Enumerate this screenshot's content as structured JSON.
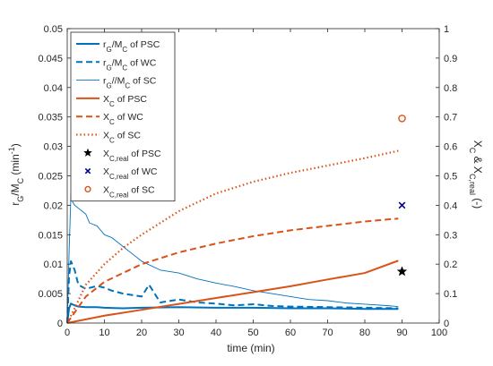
{
  "chart_data": {
    "type": "line",
    "xlabel": "time (min)",
    "ylabel_left": {
      "main": "r",
      "sub1": "G",
      "mid": "/M",
      "sub2": "C",
      "unit": " (min",
      "sup": "-1",
      "close": ")"
    },
    "ylabel_right": {
      "main1": "X",
      "sub1": "C",
      "mid": " & X",
      "sub2": "C,real",
      "unit": " (-)"
    },
    "xlim": [
      0,
      100
    ],
    "ylim_left": [
      0,
      0.05
    ],
    "ylim_right": [
      0,
      1
    ],
    "x_ticks": [
      "0",
      "10",
      "20",
      "30",
      "40",
      "50",
      "60",
      "70",
      "80",
      "90",
      "100"
    ],
    "y_left_ticks": [
      "0",
      "0.005",
      "0.01",
      "0.015",
      "0.02",
      "0.025",
      "0.03",
      "0.035",
      "0.04",
      "0.045",
      "0.05"
    ],
    "y_right_ticks": [
      "0",
      "0.1",
      "0.2",
      "0.3",
      "0.4",
      "0.5",
      "0.6",
      "0.7",
      "0.8",
      "0.9",
      "1"
    ],
    "legend_position": "top-left",
    "colors": {
      "blue": "#0072BD",
      "orange": "#D95319",
      "navy": "#00008B",
      "black": "#000000"
    },
    "series": [
      {
        "legend": {
          "main": "r",
          "sub1": "G",
          "mid": "/M",
          "sub2": "C",
          "tail": " of PSC"
        },
        "axis": "left",
        "style": "solid",
        "color": "#0072BD",
        "x": [
          0,
          0.5,
          1,
          2,
          3,
          5,
          8,
          10,
          15,
          20,
          30,
          40,
          50,
          60,
          70,
          80,
          89
        ],
        "y": [
          0,
          0.0025,
          0.0033,
          0.003,
          0.0028,
          0.0027,
          0.0027,
          0.0026,
          0.0025,
          0.0026,
          0.0027,
          0.0026,
          0.0026,
          0.0025,
          0.0025,
          0.0024,
          0.0024
        ]
      },
      {
        "legend": {
          "main": "r",
          "sub1": "G",
          "mid": "/M",
          "sub2": "C",
          "tail": " of WC"
        },
        "axis": "left",
        "style": "dashed",
        "color": "#0072BD",
        "x": [
          0,
          0.5,
          1,
          2,
          3,
          5,
          8,
          10,
          12,
          15,
          20,
          22,
          25,
          30,
          35,
          40,
          45,
          50,
          55,
          60,
          70,
          80,
          89
        ],
        "y": [
          0,
          0.008,
          0.0105,
          0.009,
          0.0065,
          0.0058,
          0.0063,
          0.006,
          0.0055,
          0.005,
          0.0045,
          0.0065,
          0.0035,
          0.004,
          0.0035,
          0.0033,
          0.003,
          0.0032,
          0.0029,
          0.0028,
          0.0027,
          0.0026,
          0.0025
        ]
      },
      {
        "legend": {
          "main": "r",
          "sub1": "G",
          "mid": "//M",
          "sub2": "C",
          "tail": " of SC"
        },
        "axis": "left",
        "style": "thin",
        "color": "#0072BD",
        "x": [
          0,
          0.5,
          1,
          1.5,
          2,
          3,
          4,
          5,
          6,
          8,
          10,
          12,
          15,
          18,
          20,
          25,
          30,
          35,
          40,
          45,
          50,
          55,
          60,
          65,
          70,
          75,
          80,
          85,
          89
        ],
        "y": [
          0,
          0.012,
          0.022,
          0.0205,
          0.02,
          0.0195,
          0.019,
          0.0185,
          0.017,
          0.0165,
          0.015,
          0.0145,
          0.013,
          0.0115,
          0.0105,
          0.009,
          0.0085,
          0.0075,
          0.0068,
          0.0062,
          0.0055,
          0.005,
          0.0045,
          0.004,
          0.0038,
          0.0034,
          0.0032,
          0.003,
          0.0028
        ]
      },
      {
        "legend": {
          "main": "X",
          "sub1": "C",
          "mid": "",
          "sub2": "",
          "tail": " of PSC"
        },
        "axis": "right",
        "style": "solid",
        "color": "#D95319",
        "x": [
          0,
          10,
          20,
          30,
          40,
          50,
          60,
          70,
          80,
          89
        ],
        "y": [
          0,
          0.025,
          0.045,
          0.065,
          0.085,
          0.105,
          0.125,
          0.148,
          0.17,
          0.212
        ]
      },
      {
        "legend": {
          "main": "X",
          "sub1": "C",
          "mid": "",
          "sub2": "",
          "tail": " of WC"
        },
        "axis": "right",
        "style": "dashed",
        "color": "#D95319",
        "x": [
          0,
          5,
          10,
          15,
          20,
          30,
          40,
          50,
          60,
          70,
          80,
          89
        ],
        "y": [
          0,
          0.09,
          0.14,
          0.17,
          0.2,
          0.24,
          0.27,
          0.295,
          0.315,
          0.33,
          0.345,
          0.355
        ]
      },
      {
        "legend": {
          "main": "X",
          "sub1": "C",
          "mid": "",
          "sub2": "",
          "tail": " of SC"
        },
        "axis": "right",
        "style": "dotted",
        "color": "#D95319",
        "x": [
          0,
          2,
          5,
          10,
          15,
          20,
          25,
          30,
          40,
          50,
          60,
          70,
          80,
          89
        ],
        "y": [
          0,
          0.05,
          0.13,
          0.2,
          0.255,
          0.3,
          0.34,
          0.38,
          0.44,
          0.48,
          0.51,
          0.535,
          0.56,
          0.585
        ]
      },
      {
        "legend": {
          "main": "X",
          "sub1": "C,real",
          "mid": "",
          "sub2": "",
          "tail": " of PSC"
        },
        "axis": "right",
        "style": "marker",
        "marker": "star",
        "color": "#000000",
        "x": [
          90
        ],
        "y": [
          0.175
        ]
      },
      {
        "legend": {
          "main": "X",
          "sub1": "C,real",
          "mid": "",
          "sub2": "",
          "tail": " of WC"
        },
        "axis": "right",
        "style": "marker",
        "marker": "x",
        "color": "#00008B",
        "x": [
          90
        ],
        "y": [
          0.4
        ]
      },
      {
        "legend": {
          "main": "X",
          "sub1": "C,real",
          "mid": "",
          "sub2": "",
          "tail": " of SC"
        },
        "axis": "right",
        "style": "marker",
        "marker": "circle",
        "color": "#D95319",
        "x": [
          90
        ],
        "y": [
          0.695
        ]
      }
    ]
  }
}
